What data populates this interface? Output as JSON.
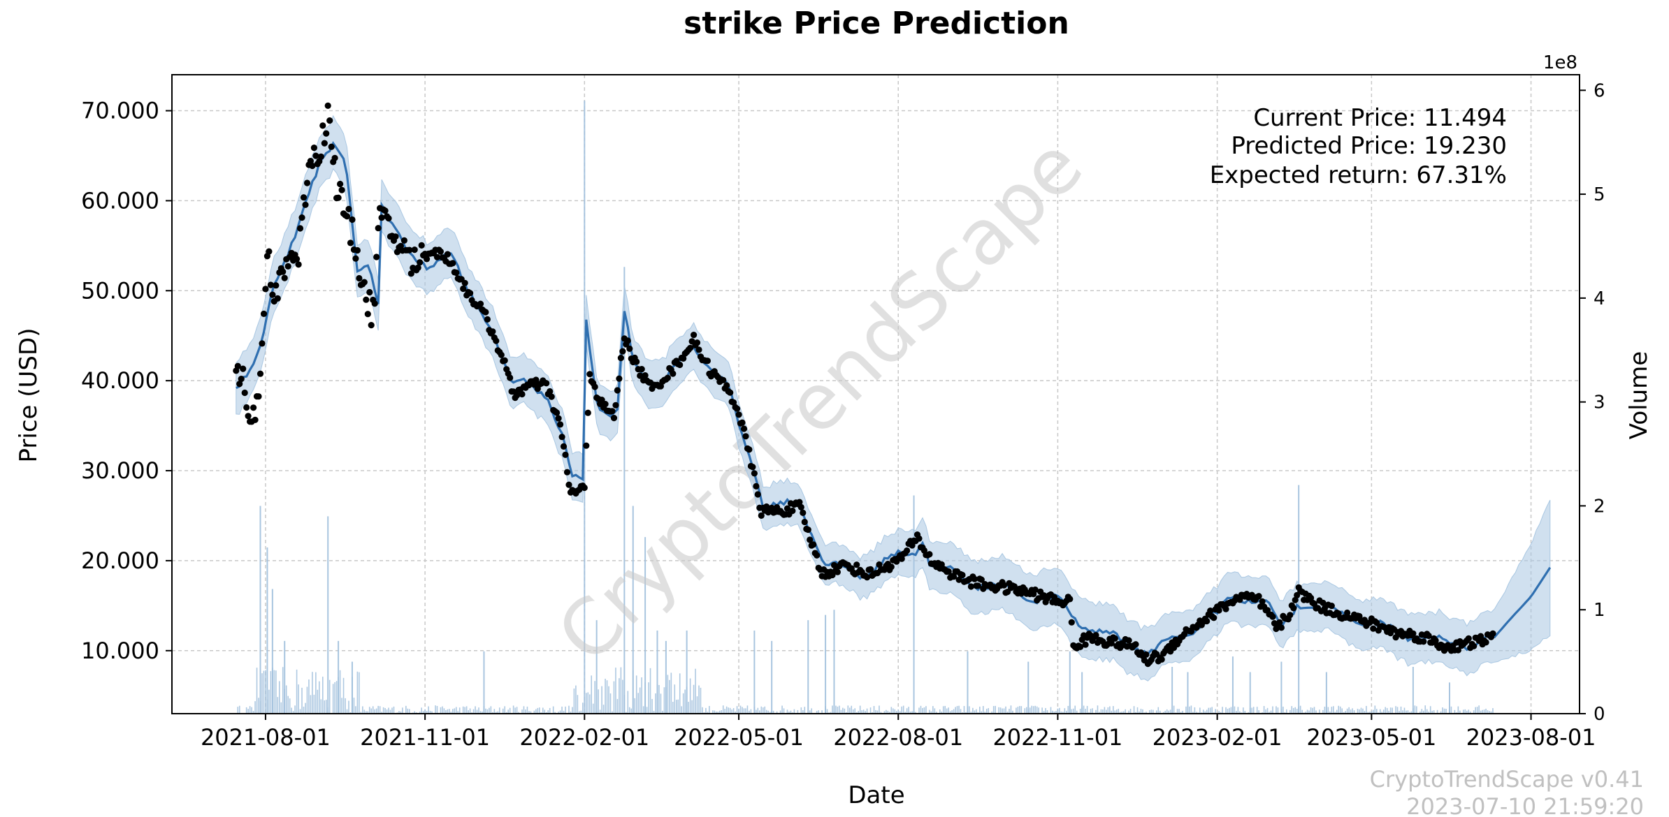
{
  "chart_data": {
    "type": "line",
    "title": "strike Price Prediction",
    "xlabel": "Date",
    "ylabel": "Price (USD)",
    "y2label": "Volume",
    "y2_multiplier": "1e8",
    "x_tick_labels": [
      "2021-08-01",
      "2021-11-01",
      "2022-02-01",
      "2022-05-01",
      "2022-08-01",
      "2022-11-01",
      "2023-02-01",
      "2023-05-01",
      "2023-08-01"
    ],
    "x_range": [
      "2021-06-08",
      "2023-08-29"
    ],
    "ylim": [
      3000,
      74000
    ],
    "y_ticks": [
      10000,
      20000,
      30000,
      40000,
      50000,
      60000,
      70000
    ],
    "y_tick_labels": [
      "10.000",
      "20.000",
      "30.000",
      "40.000",
      "50.000",
      "60.000",
      "70.000"
    ],
    "y2lim": [
      0,
      6.15
    ],
    "y2_ticks": [
      0,
      1,
      2,
      3,
      4,
      5,
      6
    ],
    "y2_tick_labels": [
      "0",
      "1",
      "2",
      "3",
      "4",
      "5",
      "6"
    ],
    "grid": true,
    "stats": {
      "current": "Current Price: 11.494",
      "predicted": "Predicted Price: 19.230",
      "expected_return": "Expected return: 67.31%"
    },
    "watermark": "CryptoTrendScape",
    "footer": {
      "version": "CryptoTrendScape v0.41",
      "timestamp": "2023-07-10 21:59:20"
    },
    "forecast_anchors": [
      [
        "2021-07-15",
        38500
      ],
      [
        "2021-07-22",
        40500
      ],
      [
        "2021-07-29",
        44000
      ],
      [
        "2021-08-05",
        51000
      ],
      [
        "2021-08-12",
        53000
      ],
      [
        "2021-08-19",
        56000
      ],
      [
        "2021-08-26",
        61000
      ],
      [
        "2021-09-02",
        65000
      ],
      [
        "2021-09-09",
        66500
      ],
      [
        "2021-09-16",
        64000
      ],
      [
        "2021-09-23",
        52000
      ],
      [
        "2021-09-30",
        53000
      ],
      [
        "2021-10-06",
        48500
      ],
      [
        "2021-10-07",
        60000
      ],
      [
        "2021-10-14",
        57000
      ],
      [
        "2021-10-21",
        54000
      ],
      [
        "2021-11-01",
        53000
      ],
      [
        "2021-11-15",
        54000
      ],
      [
        "2021-11-25",
        50000
      ],
      [
        "2021-12-10",
        46000
      ],
      [
        "2021-12-20",
        39500
      ],
      [
        "2022-01-01",
        40000
      ],
      [
        "2022-01-10",
        38500
      ],
      [
        "2022-01-20",
        33000
      ],
      [
        "2022-01-25",
        29000
      ],
      [
        "2022-02-01",
        29000
      ],
      [
        "2022-02-02",
        47000
      ],
      [
        "2022-02-08",
        38000
      ],
      [
        "2022-02-15",
        36000
      ],
      [
        "2022-02-20",
        36500
      ],
      [
        "2022-02-24",
        47500
      ],
      [
        "2022-03-01",
        42000
      ],
      [
        "2022-03-10",
        40000
      ],
      [
        "2022-03-20",
        40000
      ],
      [
        "2022-04-05",
        44000
      ],
      [
        "2022-04-15",
        41500
      ],
      [
        "2022-04-25",
        39000
      ],
      [
        "2022-05-01",
        35000
      ],
      [
        "2022-05-10",
        30000
      ],
      [
        "2022-05-15",
        26500
      ],
      [
        "2022-05-25",
        26000
      ],
      [
        "2022-06-05",
        26000
      ],
      [
        "2022-06-15",
        22000
      ],
      [
        "2022-06-20",
        19500
      ],
      [
        "2022-07-01",
        19000
      ],
      [
        "2022-07-10",
        18500
      ],
      [
        "2022-07-20",
        19500
      ],
      [
        "2022-08-01",
        20500
      ],
      [
        "2022-08-10",
        21000
      ],
      [
        "2022-08-15",
        22500
      ],
      [
        "2022-08-20",
        19500
      ],
      [
        "2022-09-01",
        18500
      ],
      [
        "2022-09-15",
        17500
      ],
      [
        "2022-10-01",
        17000
      ],
      [
        "2022-10-15",
        16000
      ],
      [
        "2022-11-01",
        15500
      ],
      [
        "2022-11-15",
        13000
      ],
      [
        "2022-12-01",
        11500
      ],
      [
        "2022-12-15",
        10500
      ],
      [
        "2022-12-25",
        10000
      ],
      [
        "2023-01-05",
        11000
      ],
      [
        "2023-01-15",
        12000
      ],
      [
        "2023-01-25",
        13500
      ],
      [
        "2023-02-01",
        14000
      ],
      [
        "2023-02-10",
        16000
      ],
      [
        "2023-02-20",
        16000
      ],
      [
        "2023-03-01",
        15500
      ],
      [
        "2023-03-10",
        12500
      ],
      [
        "2023-03-15",
        14000
      ],
      [
        "2023-03-20",
        15500
      ],
      [
        "2023-04-01",
        14500
      ],
      [
        "2023-04-15",
        14000
      ],
      [
        "2023-05-01",
        13000
      ],
      [
        "2023-05-15",
        12000
      ],
      [
        "2023-06-01",
        11500
      ],
      [
        "2023-06-10",
        10800
      ],
      [
        "2023-06-20",
        10800
      ],
      [
        "2023-07-01",
        11000
      ],
      [
        "2023-07-10",
        11300
      ],
      [
        "2023-07-20",
        13500
      ],
      [
        "2023-08-01",
        16000
      ],
      [
        "2023-08-12",
        19230
      ]
    ],
    "band_half_width": [
      [
        "2021-07-15",
        3000
      ],
      [
        "2022-05-01",
        2500
      ],
      [
        "2022-07-01",
        2200
      ],
      [
        "2022-09-01",
        2800
      ],
      [
        "2022-11-15",
        3200
      ],
      [
        "2023-01-01",
        2800
      ],
      [
        "2023-03-15",
        2600
      ],
      [
        "2023-06-15",
        2800
      ],
      [
        "2023-07-10",
        2800
      ],
      [
        "2023-08-12",
        7500
      ]
    ],
    "actual_anchors": [
      [
        "2021-07-15",
        40500
      ],
      [
        "2021-07-19",
        42000
      ],
      [
        "2021-07-22",
        37000
      ],
      [
        "2021-07-26",
        36000
      ],
      [
        "2021-07-29",
        39500
      ],
      [
        "2021-08-02",
        55000
      ],
      [
        "2021-08-05",
        48000
      ],
      [
        "2021-08-09",
        51500
      ],
      [
        "2021-08-14",
        53500
      ],
      [
        "2021-08-20",
        54000
      ],
      [
        "2021-08-26",
        64500
      ],
      [
        "2021-09-01",
        65500
      ],
      [
        "2021-09-06",
        69500
      ],
      [
        "2021-09-11",
        62000
      ],
      [
        "2021-09-16",
        58500
      ],
      [
        "2021-09-22",
        55000
      ],
      [
        "2021-09-28",
        49000
      ],
      [
        "2021-10-02",
        47500
      ],
      [
        "2021-10-06",
        58500
      ],
      [
        "2021-10-10",
        57000
      ],
      [
        "2021-10-18",
        55000
      ],
      [
        "2021-10-25",
        53000
      ],
      [
        "2021-11-05",
        54500
      ],
      [
        "2021-11-15",
        53500
      ],
      [
        "2021-11-25",
        50000
      ],
      [
        "2021-12-05",
        47500
      ],
      [
        "2021-12-15",
        43000
      ],
      [
        "2021-12-22",
        38500
      ],
      [
        "2022-01-01",
        39500
      ],
      [
        "2022-01-10",
        39500
      ],
      [
        "2022-01-18",
        35000
      ],
      [
        "2022-01-24",
        27500
      ],
      [
        "2022-02-01",
        28000
      ],
      [
        "2022-02-04",
        41000
      ],
      [
        "2022-02-10",
        37500
      ],
      [
        "2022-02-18",
        36000
      ],
      [
        "2022-02-24",
        45000
      ],
      [
        "2022-03-02",
        42000
      ],
      [
        "2022-03-12",
        39000
      ],
      [
        "2022-03-25",
        41500
      ],
      [
        "2022-04-05",
        44500
      ],
      [
        "2022-04-15",
        41000
      ],
      [
        "2022-04-25",
        39000
      ],
      [
        "2022-05-01",
        36500
      ],
      [
        "2022-05-08",
        31000
      ],
      [
        "2022-05-14",
        25500
      ],
      [
        "2022-05-25",
        25500
      ],
      [
        "2022-06-05",
        26000
      ],
      [
        "2022-06-12",
        22000
      ],
      [
        "2022-06-18",
        18500
      ],
      [
        "2022-07-01",
        19500
      ],
      [
        "2022-07-15",
        18500
      ],
      [
        "2022-08-01",
        20000
      ],
      [
        "2022-08-12",
        22500
      ],
      [
        "2022-08-20",
        20000
      ],
      [
        "2022-09-01",
        18500
      ],
      [
        "2022-09-15",
        17500
      ],
      [
        "2022-10-01",
        17000
      ],
      [
        "2022-10-15",
        16500
      ],
      [
        "2022-10-31",
        15500
      ],
      [
        "2022-11-08",
        15500
      ],
      [
        "2022-11-10",
        10500
      ],
      [
        "2022-11-20",
        11500
      ],
      [
        "2022-12-01",
        11000
      ],
      [
        "2022-12-15",
        10500
      ],
      [
        "2022-12-22",
        9000
      ],
      [
        "2023-01-01",
        9500
      ],
      [
        "2023-01-10",
        11500
      ],
      [
        "2023-01-25",
        13500
      ],
      [
        "2023-02-05",
        15000
      ],
      [
        "2023-02-15",
        16000
      ],
      [
        "2023-02-25",
        15500
      ],
      [
        "2023-03-08",
        12500
      ],
      [
        "2023-03-14",
        14000
      ],
      [
        "2023-03-20",
        16500
      ],
      [
        "2023-04-01",
        15000
      ],
      [
        "2023-04-15",
        14000
      ],
      [
        "2023-05-01",
        13000
      ],
      [
        "2023-05-15",
        12000
      ],
      [
        "2023-06-01",
        11500
      ],
      [
        "2023-06-10",
        10500
      ],
      [
        "2023-06-20",
        10500
      ],
      [
        "2023-07-01",
        11000
      ],
      [
        "2023-07-10",
        11494
      ]
    ],
    "volume_spikes": [
      [
        "2021-07-29",
        2.0
      ],
      [
        "2021-08-02",
        1.6
      ],
      [
        "2021-08-05",
        1.2
      ],
      [
        "2021-08-12",
        0.7
      ],
      [
        "2021-09-06",
        1.9
      ],
      [
        "2021-09-12",
        0.7
      ],
      [
        "2021-09-20",
        0.5
      ],
      [
        "2021-12-05",
        0.6
      ],
      [
        "2022-02-01",
        5.9
      ],
      [
        "2022-02-08",
        0.9
      ],
      [
        "2022-02-24",
        4.3
      ],
      [
        "2022-03-01",
        2.0
      ],
      [
        "2022-03-08",
        1.7
      ],
      [
        "2022-03-15",
        0.8
      ],
      [
        "2022-03-20",
        0.7
      ],
      [
        "2022-04-01",
        0.8
      ],
      [
        "2022-05-10",
        0.8
      ],
      [
        "2022-05-20",
        0.7
      ],
      [
        "2022-06-10",
        0.9
      ],
      [
        "2022-06-20",
        0.95
      ],
      [
        "2022-06-25",
        1.0
      ],
      [
        "2022-08-10",
        2.1
      ],
      [
        "2022-09-10",
        0.6
      ],
      [
        "2022-10-15",
        0.5
      ],
      [
        "2022-11-08",
        0.6
      ],
      [
        "2022-11-15",
        0.4
      ],
      [
        "2023-01-06",
        0.45
      ],
      [
        "2023-01-15",
        0.4
      ],
      [
        "2023-02-10",
        0.55
      ],
      [
        "2023-02-20",
        0.4
      ],
      [
        "2023-03-10",
        0.5
      ],
      [
        "2023-03-20",
        2.2
      ],
      [
        "2023-04-05",
        0.4
      ],
      [
        "2023-05-25",
        0.45
      ],
      [
        "2023-06-15",
        0.3
      ]
    ]
  }
}
